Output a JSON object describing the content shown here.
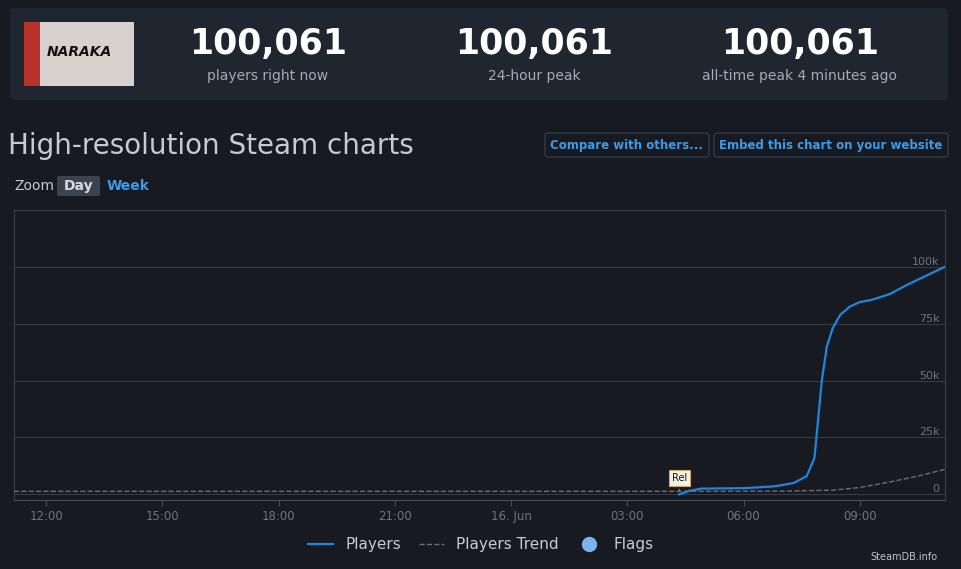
{
  "header": {
    "logo": "NARAKA",
    "stats": [
      {
        "value": "100,061",
        "label": "players right now"
      },
      {
        "value": "100,061",
        "label": "24-hour peak"
      },
      {
        "value": "100,061",
        "label": "all-time peak 4 minutes ago"
      }
    ]
  },
  "page_title": "High-resolution Steam charts",
  "buttons": [
    "Compare with others...",
    "Embed this chart on your website"
  ],
  "zoom": {
    "label": "Zoom",
    "options": [
      "Day",
      "Week"
    ],
    "active": "Day"
  },
  "chart_data": {
    "type": "line",
    "xlim": [
      11.17,
      35.2
    ],
    "xticks": [
      {
        "value": 12,
        "label": "12:00"
      },
      {
        "value": 15,
        "label": "15:00"
      },
      {
        "value": 18,
        "label": "18:00"
      },
      {
        "value": 21,
        "label": "21:00"
      },
      {
        "value": 24,
        "label": "16. Jun"
      },
      {
        "value": 27,
        "label": "03:00"
      },
      {
        "value": 30,
        "label": "06:00"
      },
      {
        "value": 33,
        "label": "09:00"
      }
    ],
    "ylim": [
      -2500,
      125000
    ],
    "yticks": [
      0,
      {
        "value": 25000,
        "label": "25k"
      },
      {
        "value": 50000,
        "label": "50k"
      },
      {
        "value": 75000,
        "label": "75k"
      },
      {
        "value": 100000,
        "label": "100k"
      }
    ],
    "grid": true,
    "legend": "lower center",
    "series": [
      {
        "name": "Players",
        "color": "#1f86dc",
        "line_style": "solid",
        "x": [
          28.34,
          28.6,
          28.91,
          30.0,
          30.8,
          31.3,
          31.63,
          31.83,
          32.02,
          32.15,
          32.3,
          32.5,
          32.74,
          33.0,
          33.31,
          33.77,
          34.21,
          34.7,
          35.2
        ],
        "values": [
          0,
          1500,
          2500,
          2700,
          3500,
          5000,
          8000,
          16000,
          50000,
          65000,
          73000,
          79000,
          82500,
          84500,
          85500,
          88000,
          92000,
          96000,
          100061
        ]
      },
      {
        "name": "Players Trend",
        "color": "#6b6e73",
        "line_style": "dashed",
        "x": [
          11.17,
          20.0,
          28.0,
          31.0,
          32.3,
          33.0,
          33.8,
          34.5,
          35.2
        ],
        "values": [
          1300,
          1300,
          1300,
          1400,
          1800,
          3000,
          5500,
          8000,
          11000
        ]
      }
    ],
    "flags": {
      "name": "Flags",
      "color": "#7cb3ec",
      "items": [
        {
          "x": 28.34,
          "label": "Rel"
        }
      ]
    },
    "credit": "SteamDB.info"
  }
}
